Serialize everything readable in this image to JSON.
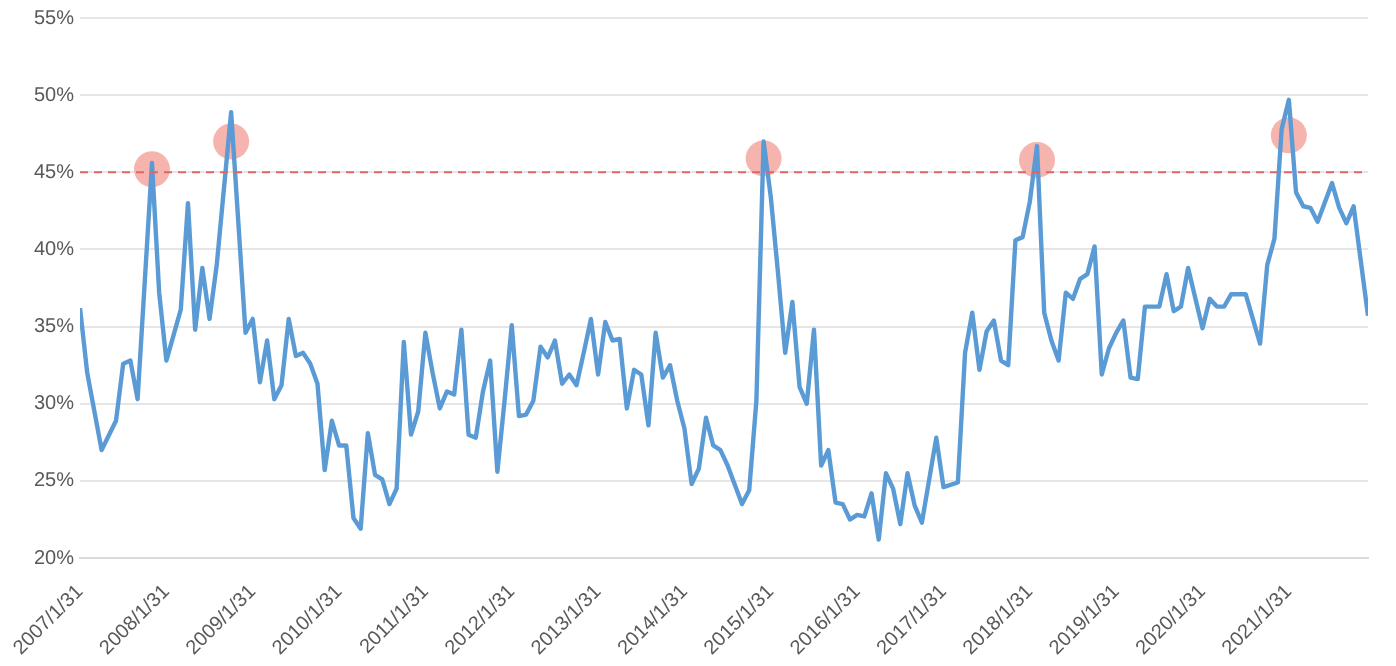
{
  "chart_data": {
    "type": "line",
    "legend": false,
    "grid": "y",
    "line_style": "solid",
    "xlim": [
      "2007-01",
      "2021-12"
    ],
    "xticks": [
      {
        "value": "2007-01",
        "label": "2007/1/31"
      },
      {
        "value": "2008-01",
        "label": "2008/1/31"
      },
      {
        "value": "2009-01",
        "label": "2009/1/31"
      },
      {
        "value": "2010-01",
        "label": "2010/1/31"
      },
      {
        "value": "2011-01",
        "label": "2011/1/31"
      },
      {
        "value": "2012-01",
        "label": "2012/1/31"
      },
      {
        "value": "2013-01",
        "label": "2013/1/31"
      },
      {
        "value": "2014-01",
        "label": "2014/1/31"
      },
      {
        "value": "2015-01",
        "label": "2015/1/31"
      },
      {
        "value": "2016-01",
        "label": "2016/1/31"
      },
      {
        "value": "2017-01",
        "label": "2017/1/31"
      },
      {
        "value": "2018-01",
        "label": "2018/1/31"
      },
      {
        "value": "2019-01",
        "label": "2019/1/31"
      },
      {
        "value": "2020-01",
        "label": "2020/1/31"
      },
      {
        "value": "2021-01",
        "label": "2021/1/31"
      }
    ],
    "ylim": [
      20,
      55
    ],
    "yticks": [
      {
        "value": 20,
        "label": "20%"
      },
      {
        "value": 25,
        "label": "25%"
      },
      {
        "value": 30,
        "label": "30%"
      },
      {
        "value": 35,
        "label": "35%"
      },
      {
        "value": 40,
        "label": "40%"
      },
      {
        "value": 45,
        "label": "45%"
      },
      {
        "value": 50,
        "label": "50%"
      },
      {
        "value": 55,
        "label": "55%"
      }
    ],
    "ref_lines": [
      {
        "axis": "y",
        "value": 45,
        "color": "#e06666",
        "line_style": "dashed"
      }
    ],
    "series": [
      {
        "marker": "none",
        "color": "#5b9bd5",
        "x": [
          "2007-01",
          "2007-02",
          "2007-04",
          "2007-06",
          "2007-07",
          "2007-08",
          "2007-09",
          "2007-11",
          "2007-12",
          "2008-01",
          "2008-03",
          "2008-04",
          "2008-05",
          "2008-06",
          "2008-07",
          "2008-08",
          "2008-10",
          "2008-12",
          "2009-01",
          "2009-02",
          "2009-03",
          "2009-04",
          "2009-05",
          "2009-06",
          "2009-07",
          "2009-08",
          "2009-09",
          "2009-10",
          "2009-11",
          "2009-12",
          "2010-01",
          "2010-02",
          "2010-03",
          "2010-04",
          "2010-05",
          "2010-06",
          "2010-07",
          "2010-08",
          "2010-09",
          "2010-10",
          "2010-11",
          "2010-12",
          "2011-01",
          "2011-02",
          "2011-03",
          "2011-04",
          "2011-05",
          "2011-06",
          "2011-07",
          "2011-08",
          "2011-09",
          "2011-10",
          "2011-11",
          "2011-12",
          "2012-01",
          "2012-02",
          "2012-03",
          "2012-04",
          "2012-05",
          "2012-06",
          "2012-07",
          "2012-08",
          "2012-09",
          "2012-10",
          "2012-11",
          "2012-12",
          "2013-01",
          "2013-02",
          "2013-03",
          "2013-04",
          "2013-05",
          "2013-06",
          "2013-07",
          "2013-08",
          "2013-09",
          "2013-10",
          "2013-11",
          "2013-12",
          "2014-01",
          "2014-02",
          "2014-03",
          "2014-04",
          "2014-05",
          "2014-06",
          "2014-07",
          "2014-09",
          "2014-10",
          "2014-11",
          "2014-12",
          "2015-01",
          "2015-02",
          "2015-03",
          "2015-04",
          "2015-05",
          "2015-06",
          "2015-07",
          "2015-08",
          "2015-09",
          "2015-10",
          "2015-11",
          "2015-12",
          "2016-01",
          "2016-02",
          "2016-03",
          "2016-04",
          "2016-05",
          "2016-06",
          "2016-07",
          "2016-08",
          "2016-09",
          "2016-10",
          "2016-12",
          "2017-01",
          "2017-03",
          "2017-04",
          "2017-05",
          "2017-06",
          "2017-07",
          "2017-08",
          "2017-09",
          "2017-10",
          "2017-11",
          "2017-12",
          "2018-01",
          "2018-02",
          "2018-03",
          "2018-04",
          "2018-05",
          "2018-06",
          "2018-07",
          "2018-08",
          "2018-09",
          "2018-10",
          "2018-11",
          "2018-12",
          "2019-01",
          "2019-02",
          "2019-03",
          "2019-04",
          "2019-05",
          "2019-06",
          "2019-07",
          "2019-08",
          "2019-09",
          "2019-10",
          "2019-11",
          "2020-01",
          "2020-02",
          "2020-03",
          "2020-04",
          "2020-05",
          "2020-07",
          "2020-09",
          "2020-10",
          "2020-11",
          "2020-12",
          "2021-01",
          "2021-02",
          "2021-03",
          "2021-04",
          "2021-05",
          "2021-07",
          "2021-08",
          "2021-09",
          "2021-10",
          "2021-12"
        ],
        "values": [
          36.2,
          32,
          27.0,
          28.9,
          32.6,
          32.8,
          30.3,
          45.6,
          37.2,
          32.8,
          36.1,
          43.0,
          34.8,
          38.8,
          35.5,
          39.0,
          48.9,
          34.6,
          35.5,
          31.4,
          34.1,
          30.3,
          31.2,
          35.5,
          33.1,
          33.3,
          32.6,
          31.3,
          25.7,
          28.9,
          27.3,
          27.3,
          22.6,
          21.9,
          28.1,
          25.4,
          25.1,
          23.5,
          24.5,
          34.0,
          28.0,
          29.5,
          34.6,
          32.0,
          29.7,
          30.8,
          30.6,
          34.8,
          28.0,
          27.8,
          30.8,
          32.8,
          25.6,
          30.2,
          35.1,
          29.2,
          29.3,
          30.2,
          33.7,
          33.0,
          34.1,
          31.3,
          31.9,
          31.2,
          33.3,
          35.5,
          31.9,
          35.3,
          34.1,
          34.2,
          29.7,
          32.2,
          31.9,
          28.6,
          34.6,
          31.7,
          32.5,
          30.2,
          28.4,
          24.8,
          25.8,
          29.1,
          27.3,
          27.0,
          26.0,
          23.5,
          24.4,
          30.2,
          47.0,
          43.4,
          38.5,
          33.3,
          36.6,
          31.1,
          30.0,
          34.8,
          26.0,
          27.0,
          23.6,
          23.5,
          22.5,
          22.8,
          22.7,
          24.2,
          21.2,
          25.5,
          24.5,
          22.2,
          25.5,
          23.4,
          22.3,
          27.8,
          24.6,
          24.9,
          33.3,
          35.9,
          32.2,
          34.7,
          35.4,
          32.8,
          32.5,
          40.6,
          40.8,
          43.1,
          46.7,
          35.9,
          34.1,
          32.8,
          37.2,
          36.8,
          38.1,
          38.4,
          40.2,
          31.9,
          33.6,
          34.6,
          35.4,
          31.7,
          31.6,
          36.3,
          36.3,
          36.3,
          38.4,
          36.0,
          36.3,
          38.8,
          34.9,
          36.8,
          36.3,
          36.3,
          37.1,
          37.1,
          33.9,
          39.0,
          40.7,
          47.8,
          49.7,
          43.7,
          42.8,
          42.7,
          41.8,
          44.3,
          42.7,
          41.7,
          42.8,
          35.7
        ]
      },
      {
        "type": "scatter",
        "marker": "circle",
        "color": "#f5b5ae",
        "x": [
          "2007-11",
          "2008-10",
          "2014-12",
          "2018-02",
          "2021-01"
        ],
        "values": [
          45.2,
          47.0,
          45.9,
          45.8,
          47.4
        ]
      }
    ]
  }
}
